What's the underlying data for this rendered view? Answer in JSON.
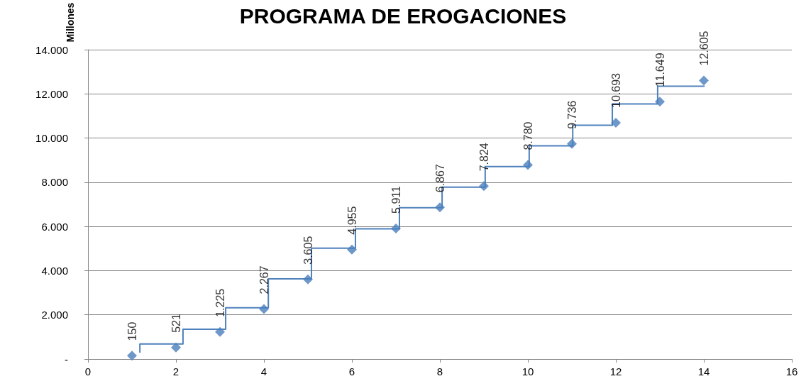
{
  "chart_data": {
    "type": "scatter",
    "title": "PROGRAMA DE EROGACIONES",
    "ylabel": "Millones",
    "xlim": [
      0,
      16
    ],
    "xticks": [
      0,
      2,
      4,
      6,
      8,
      10,
      12,
      14,
      16
    ],
    "ylim": [
      0,
      14000
    ],
    "yticks": [
      {
        "value": 0,
        "label": "-"
      },
      {
        "value": 2000,
        "label": "2.000"
      },
      {
        "value": 4000,
        "label": "4.000"
      },
      {
        "value": 6000,
        "label": "6.000"
      },
      {
        "value": 8000,
        "label": "8.000"
      },
      {
        "value": 10000,
        "label": "10.000"
      },
      {
        "value": 12000,
        "label": "12.000"
      },
      {
        "value": 14000,
        "label": "14.000"
      }
    ],
    "grid": "y",
    "series": [
      {
        "type": "step",
        "color": "#4f81bd",
        "marker": "none",
        "line_style": "solid",
        "x": [
          1.18,
          2.16,
          3.13,
          4.1,
          5.08,
          6.08,
          7.08,
          8.05,
          9.03,
          10.03,
          11.02,
          11.92,
          12.95,
          14.02
        ],
        "values": [
          290,
          680,
          1350,
          2320,
          3630,
          5020,
          5890,
          6850,
          7780,
          8710,
          9650,
          10580,
          11540,
          12350
        ]
      },
      {
        "color": "#4a7ebb",
        "marker": "diamond",
        "x": [
          1,
          2,
          3,
          4,
          5,
          6,
          7,
          8,
          9,
          10,
          11,
          12,
          13,
          14
        ],
        "values": [
          150,
          521,
          1225,
          2267,
          3605,
          4955,
          5911,
          6867,
          7824,
          8780,
          9736,
          10693,
          11649,
          12605
        ],
        "value_labels": [
          "150",
          "521",
          "1.225",
          "2.267",
          "3.605",
          "4.955",
          "5.911",
          "6.867",
          "7.824",
          "8.780",
          "9.736",
          "10.693",
          "11.649",
          "12.605"
        ]
      }
    ]
  }
}
